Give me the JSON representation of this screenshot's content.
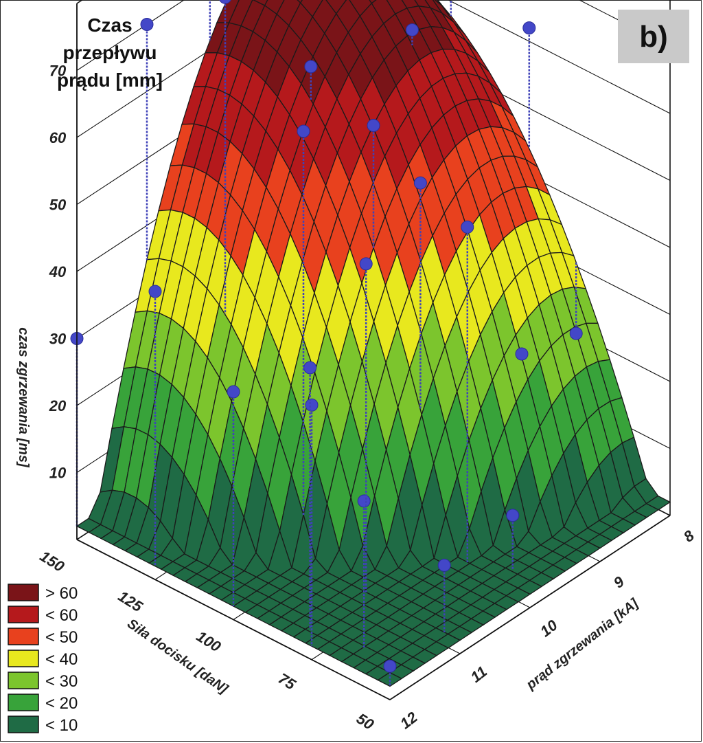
{
  "panel_label": "b)",
  "chart_data": {
    "type": "surface3d",
    "title_lines": [
      "Czas",
      "przepływu",
      "prądu [mm]"
    ],
    "zlabel": "czas zgrzewania [ms]",
    "xlabel": "prąd zgrzewania [kA]",
    "ylabel": "Siła docisku [daN]",
    "x_ticks": [
      "8",
      "9",
      "10",
      "11",
      "12"
    ],
    "y_ticks": [
      "150",
      "125",
      "100",
      "75",
      "50"
    ],
    "z_ticks": [
      "10",
      "20",
      "30",
      "40",
      "50",
      "60",
      "70"
    ],
    "xlim": [
      8,
      12
    ],
    "ylim": [
      50,
      150
    ],
    "zlim": [
      0,
      80
    ],
    "legend": [
      {
        "label": "> 60",
        "color": "#7a1418"
      },
      {
        "label": "< 60",
        "color": "#b5191c"
      },
      {
        "label": "< 50",
        "color": "#e8411e"
      },
      {
        "label": "< 40",
        "color": "#e8e81e"
      },
      {
        "label": "< 30",
        "color": "#7cc52d"
      },
      {
        "label": "< 20",
        "color": "#38a33a"
      },
      {
        "label": "< 10",
        "color": "#1f6b45"
      }
    ],
    "points": [
      {
        "x": 12,
        "y": 150,
        "z": 30
      },
      {
        "x": 12,
        "y": 125,
        "z": 43
      },
      {
        "x": 12,
        "y": 100,
        "z": 34
      },
      {
        "x": 12,
        "y": 75,
        "z": 38
      },
      {
        "x": 12,
        "y": 50,
        "z": 5
      },
      {
        "x": 11.8,
        "y": 80,
        "z": 41
      },
      {
        "x": 11.7,
        "y": 65,
        "z": 24
      },
      {
        "x": 11,
        "y": 150,
        "z": 70
      },
      {
        "x": 11,
        "y": 125,
        "z": 80
      },
      {
        "x": 11,
        "y": 100,
        "z": 66
      },
      {
        "x": 11,
        "y": 80,
        "z": 51
      },
      {
        "x": 11,
        "y": 55,
        "z": 12
      },
      {
        "x": 10.1,
        "y": 150,
        "z": 78
      },
      {
        "x": 10,
        "y": 120,
        "z": 64
      },
      {
        "x": 10,
        "y": 100,
        "z": 60
      },
      {
        "x": 10,
        "y": 85,
        "z": 55
      },
      {
        "x": 10,
        "y": 70,
        "z": 52
      },
      {
        "x": 9.8,
        "y": 60,
        "z": 10
      },
      {
        "x": 9.1,
        "y": 150,
        "z": 72
      },
      {
        "x": 9,
        "y": 110,
        "z": 65
      },
      {
        "x": 9,
        "y": 75,
        "z": 25
      },
      {
        "x": 8,
        "y": 150,
        "z": 76
      },
      {
        "x": 8,
        "y": 120,
        "z": 78
      },
      {
        "x": 8,
        "y": 95,
        "z": 62
      },
      {
        "x": 8,
        "y": 80,
        "z": 20
      }
    ]
  }
}
